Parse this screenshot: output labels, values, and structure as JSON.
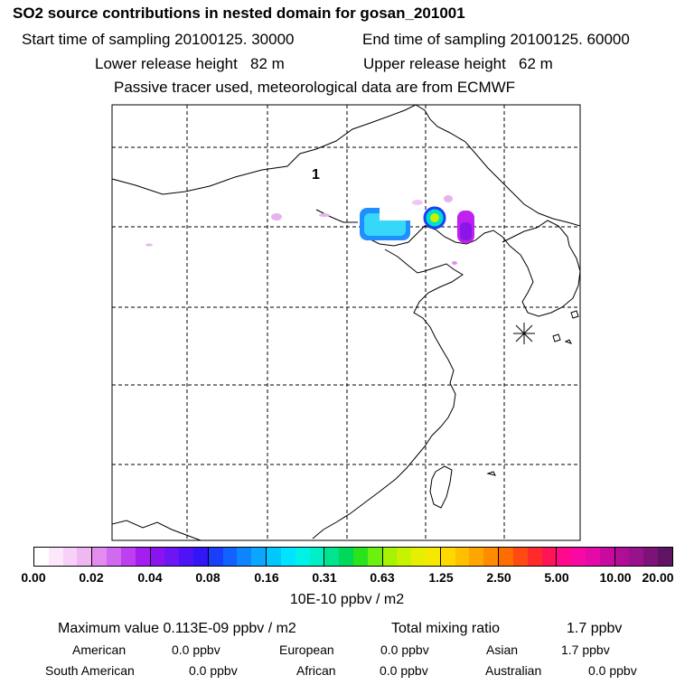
{
  "header": {
    "title": "SO2 source contributions in nested domain for gosan_201001",
    "start_time": "Start time of sampling 20100125. 30000",
    "end_time": "End time of sampling 20100125. 60000",
    "lower_release": "Lower release height   82 m",
    "upper_release": "Upper release height   62 m",
    "tracer_note": "Passive tracer used, meteorological data are from ECMWF"
  },
  "map": {
    "contour_label": "1",
    "receptor_marker": "asterisk-icon",
    "plume_colors": [
      "#1f8fff",
      "#37d7f7",
      "#00e0c8",
      "#c020f0",
      "#8a17e8",
      "#e7b3ee",
      "#7a3cff"
    ]
  },
  "colorbar": {
    "tick_labels": [
      "0.00",
      "0.02",
      "0.04",
      "0.08",
      "0.16",
      "0.31",
      "0.63",
      "1.25",
      "2.50",
      "5.00",
      "10.00",
      "20.00"
    ],
    "groups": [
      [
        "#ffffff",
        "#fde8fb",
        "#f7d1f7",
        "#f0b8f2"
      ],
      [
        "#e28cf0",
        "#d06af0",
        "#bd3ff0",
        "#a51ef0"
      ],
      [
        "#8a14ef",
        "#6d16f3",
        "#4f14f5",
        "#3216f6"
      ],
      [
        "#1a3ffa",
        "#1162ff",
        "#0d85ff",
        "#0aa6ff"
      ],
      [
        "#00c8ff",
        "#00e4ff",
        "#00f2e6",
        "#00efc6"
      ],
      [
        "#00e48f",
        "#00d85a",
        "#29e31c",
        "#6cf00f"
      ],
      [
        "#a7f205",
        "#c8f300",
        "#e6ef00",
        "#f6e800"
      ],
      [
        "#ffd800",
        "#ffc000",
        "#ffa600",
        "#ff8c00"
      ],
      [
        "#ff6c00",
        "#ff4a14",
        "#ff2a2a",
        "#ff1458"
      ],
      [
        "#ff0a8c",
        "#f70aa4",
        "#e40aa8",
        "#c80a9f"
      ],
      [
        "#b10d99",
        "#98128c",
        "#7d1279",
        "#5e1462"
      ]
    ],
    "unit": "10E-10 ppbv / m2"
  },
  "stats": {
    "max_value": "Maximum value  0.113E-09 ppbv / m2",
    "total_mixing": "Total mixing ratio",
    "total_mixing_value": "1.7 ppbv",
    "american_label": "American",
    "american_value": "0.0 ppbv",
    "european_label": "European",
    "european_value": "0.0 ppbv",
    "asian_label": "Asian",
    "asian_value": "1.7 ppbv",
    "south_american_label": "South American",
    "south_american_value": "0.0 ppbv",
    "african_label": "African",
    "african_value": "0.0 ppbv",
    "australian_label": "Australian",
    "australian_value": "0.0 ppbv"
  }
}
